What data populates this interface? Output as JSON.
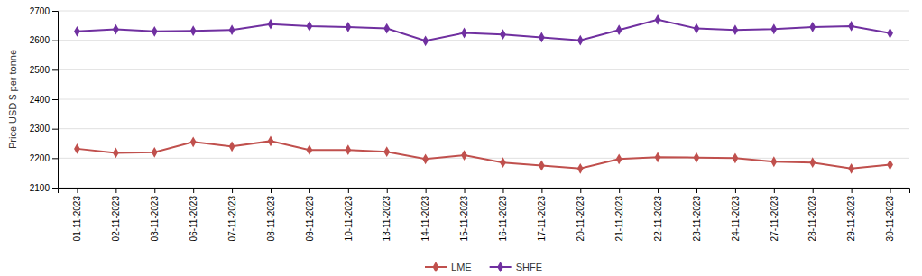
{
  "chart_data": {
    "type": "line",
    "categories": [
      "01-11-2023",
      "02-11-2023",
      "03-11-2023",
      "06-11-2023",
      "07-11-2023",
      "08-11-2023",
      "09-11-2023",
      "10-11-2023",
      "13-11-2023",
      "14-11-2023",
      "15-11-2023",
      "16-11-2023",
      "17-11-2023",
      "20-11-2023",
      "21-11-2023",
      "22-11-2023",
      "23-11-2023",
      "24-11-2023",
      "27-11-2023",
      "28-11-2023",
      "29-11-2023",
      "30-11-2023"
    ],
    "series": [
      {
        "name": "LME",
        "color": "#c0504d",
        "marker": "diamond",
        "values": [
          2232,
          2218,
          2220,
          2255,
          2240,
          2258,
          2228,
          2228,
          2222,
          2197,
          2210,
          2185,
          2175,
          2165,
          2197,
          2203,
          2202,
          2200,
          2188,
          2185,
          2165,
          2178
        ]
      },
      {
        "name": "SHFE",
        "color": "#7030a0",
        "marker": "diamond",
        "values": [
          2630,
          2637,
          2630,
          2632,
          2635,
          2655,
          2648,
          2645,
          2640,
          2598,
          2625,
          2620,
          2610,
          2600,
          2635,
          2670,
          2640,
          2635,
          2638,
          2645,
          2648,
          2624
        ]
      }
    ],
    "ylabel": "Price USD $ per tonne",
    "ylim": [
      2100,
      2700
    ],
    "yticks": [
      2100,
      2200,
      2300,
      2400,
      2500,
      2600,
      2700
    ],
    "grid": true,
    "legend": "bottom"
  }
}
